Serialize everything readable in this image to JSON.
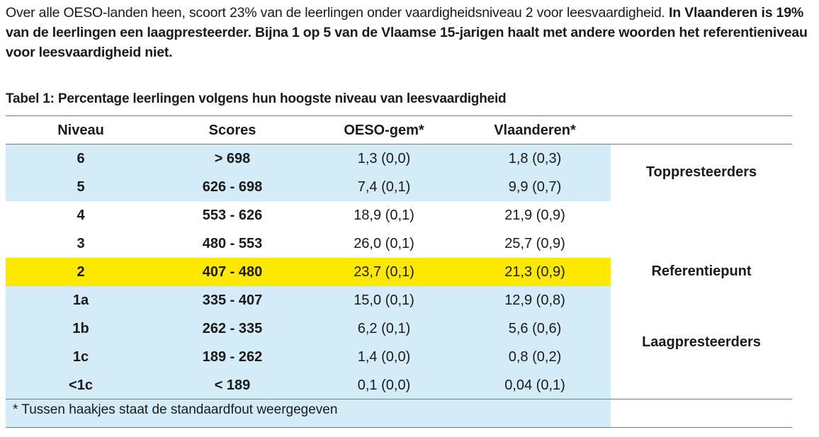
{
  "intro": {
    "normal": "Over alle OESO-landen heen, scoort 23% van de leerlingen onder vaardigheidsniveau 2 voor leesvaardigheid. ",
    "bold": "In Vlaanderen is 19% van de leerlingen een laagpresteerder. Bijna 1 op 5 van de Vlaamse 15-jarigen haalt met andere woorden het referentieniveau voor leesvaardigheid niet."
  },
  "table": {
    "caption": "Tabel 1: Percentage leerlingen volgens hun hoogste niveau van leesvaardigheid",
    "headers": [
      "Niveau",
      "Scores",
      "OESO-gem*",
      "Vlaanderen*"
    ],
    "rows": [
      {
        "niveau": "6",
        "scores": "> 698",
        "oeso": "1,3 (0,0)",
        "vl": "1,8 (0,3)"
      },
      {
        "niveau": "5",
        "scores": "626 - 698",
        "oeso": "7,4 (0,1)",
        "vl": "9,9 (0,7)"
      },
      {
        "niveau": "4",
        "scores": "553 - 626",
        "oeso": "18,9 (0,1)",
        "vl": "21,9 (0,9)"
      },
      {
        "niveau": "3",
        "scores": "480 - 553",
        "oeso": "26,0 (0,1)",
        "vl": "25,7 (0,9)"
      },
      {
        "niveau": "2",
        "scores": "407 - 480",
        "oeso": "23,7 (0,1)",
        "vl": "21,3 (0,9)"
      },
      {
        "niveau": "1a",
        "scores": "335 - 407",
        "oeso": "15,0 (0,1)",
        "vl": "12,9 (0,8)"
      },
      {
        "niveau": "1b",
        "scores": "262 - 335",
        "oeso": "6,2 (0,1)",
        "vl": "5,6 (0,6)"
      },
      {
        "niveau": "1c",
        "scores": "189 - 262",
        "oeso": "1,4 (0,0)",
        "vl": "0,8 (0,2)"
      },
      {
        "niveau": "<1c",
        "scores": "< 189",
        "oeso": "0,1 (0,0)",
        "vl": "0,04 (0,1)"
      }
    ],
    "groups": {
      "top": "Toppresteerders",
      "ref": "Referentiepunt",
      "low": "Laagpresteerders"
    },
    "footnote": "* Tussen haakjes staat de standaardfout weergegeven"
  },
  "colors": {
    "blue_band": "#d4ebf8",
    "highlight": "#ffe800",
    "rule": "#3a8fb0"
  }
}
